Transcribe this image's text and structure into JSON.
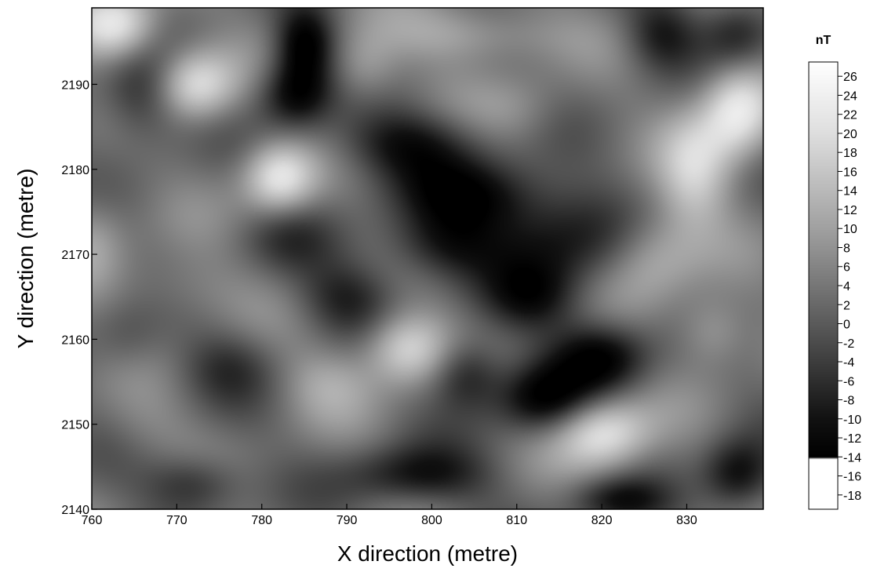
{
  "chart_data": {
    "type": "heatmap",
    "title": "",
    "xlabel": "X direction (metre)",
    "ylabel": "Y direction (metre)",
    "xlim": [
      760,
      839
    ],
    "ylim": [
      2140,
      2199
    ],
    "x_ticks": [
      760,
      770,
      780,
      790,
      800,
      810,
      820,
      830
    ],
    "y_ticks": [
      2140,
      2150,
      2160,
      2170,
      2180,
      2190
    ],
    "colorbar": {
      "title": "nT",
      "ticks": [
        26,
        24,
        22,
        20,
        18,
        16,
        14,
        12,
        10,
        8,
        6,
        4,
        2,
        0,
        -2,
        -4,
        -6,
        -8,
        -10,
        -12,
        -14,
        -16,
        -18
      ],
      "range": [
        -19.5,
        27.5
      ],
      "colormap": "grayscale",
      "stops": [
        {
          "value": -19.5,
          "color": "#ffffff"
        },
        {
          "value": -14.2,
          "color": "#ffffff"
        },
        {
          "value": -14.0,
          "color": "#000000"
        },
        {
          "value": -10.0,
          "color": "#111111"
        },
        {
          "value": 0.0,
          "color": "#5a5a5a"
        },
        {
          "value": 10.0,
          "color": "#a0a0a0"
        },
        {
          "value": 20.0,
          "color": "#dedede"
        },
        {
          "value": 27.5,
          "color": "#ffffff"
        }
      ]
    },
    "anomalies": [
      {
        "x": 763,
        "y": 2197,
        "value": 24,
        "sx": 3.5,
        "sy": 3
      },
      {
        "x": 772,
        "y": 2190,
        "value": 22,
        "sx": 3.5,
        "sy": 3
      },
      {
        "x": 766,
        "y": 2189,
        "value": -10,
        "sx": 3.5,
        "sy": 4
      },
      {
        "x": 782,
        "y": 2179,
        "value": 22,
        "sx": 3,
        "sy": 3
      },
      {
        "x": 785,
        "y": 2195,
        "value": -14,
        "sx": 2.5,
        "sy": 3
      },
      {
        "x": 784,
        "y": 2189,
        "value": -13,
        "sx": 3,
        "sy": 3
      },
      {
        "x": 792,
        "y": 2192,
        "value": 12,
        "sx": 3,
        "sy": 3
      },
      {
        "x": 805,
        "y": 2196,
        "value": 12,
        "sx": 7,
        "sy": 2.5
      },
      {
        "x": 797,
        "y": 2183,
        "value": -10,
        "sx": 6,
        "sy": 3
      },
      {
        "x": 805,
        "y": 2177,
        "value": -11,
        "sx": 6,
        "sy": 3
      },
      {
        "x": 801,
        "y": 2171,
        "value": -9,
        "sx": 5,
        "sy": 3
      },
      {
        "x": 815,
        "y": 2172,
        "value": -10,
        "sx": 6,
        "sy": 4
      },
      {
        "x": 812,
        "y": 2165,
        "value": -8,
        "sx": 4,
        "sy": 3
      },
      {
        "x": 790,
        "y": 2165,
        "value": -7,
        "sx": 4,
        "sy": 3
      },
      {
        "x": 797,
        "y": 2159,
        "value": 20,
        "sx": 3.5,
        "sy": 3
      },
      {
        "x": 788,
        "y": 2155,
        "value": 10,
        "sx": 4,
        "sy": 3
      },
      {
        "x": 804,
        "y": 2156,
        "value": -10,
        "sx": 3,
        "sy": 3
      },
      {
        "x": 813,
        "y": 2153,
        "value": -13,
        "sx": 4,
        "sy": 3
      },
      {
        "x": 820,
        "y": 2158,
        "value": -13,
        "sx": 4,
        "sy": 3
      },
      {
        "x": 820,
        "y": 2149,
        "value": 22,
        "sx": 4,
        "sy": 3
      },
      {
        "x": 836,
        "y": 2187,
        "value": 23,
        "sx": 3,
        "sy": 4
      },
      {
        "x": 831,
        "y": 2180,
        "value": 16,
        "sx": 3,
        "sy": 5
      },
      {
        "x": 826,
        "y": 2170,
        "value": 14,
        "sx": 4,
        "sy": 4
      },
      {
        "x": 833,
        "y": 2161,
        "value": 12,
        "sx": 3,
        "sy": 3
      },
      {
        "x": 827,
        "y": 2196,
        "value": -8,
        "sx": 3,
        "sy": 3
      },
      {
        "x": 836,
        "y": 2196,
        "value": -9,
        "sx": 3,
        "sy": 3
      },
      {
        "x": 836,
        "y": 2144,
        "value": -12,
        "sx": 3,
        "sy": 3
      },
      {
        "x": 822,
        "y": 2141,
        "value": -9,
        "sx": 4,
        "sy": 2
      },
      {
        "x": 770,
        "y": 2166,
        "value": 8,
        "sx": 5,
        "sy": 3
      },
      {
        "x": 776,
        "y": 2157,
        "value": -4,
        "sx": 4,
        "sy": 3
      },
      {
        "x": 766,
        "y": 2150,
        "value": 6,
        "sx": 4,
        "sy": 3
      },
      {
        "x": 772,
        "y": 2143,
        "value": -8,
        "sx": 4,
        "sy": 2.5
      },
      {
        "x": 798,
        "y": 2144,
        "value": -10,
        "sx": 6,
        "sy": 2.5
      },
      {
        "x": 783,
        "y": 2172,
        "value": -3,
        "sx": 4,
        "sy": 3
      },
      {
        "x": 810,
        "y": 2187,
        "value": 8,
        "sx": 4,
        "sy": 3
      },
      {
        "x": 760,
        "y": 2172,
        "value": 10,
        "sx": 3,
        "sy": 4
      },
      {
        "x": 764,
        "y": 2160,
        "value": -2,
        "sx": 3,
        "sy": 3
      }
    ],
    "background_value": 3
  }
}
